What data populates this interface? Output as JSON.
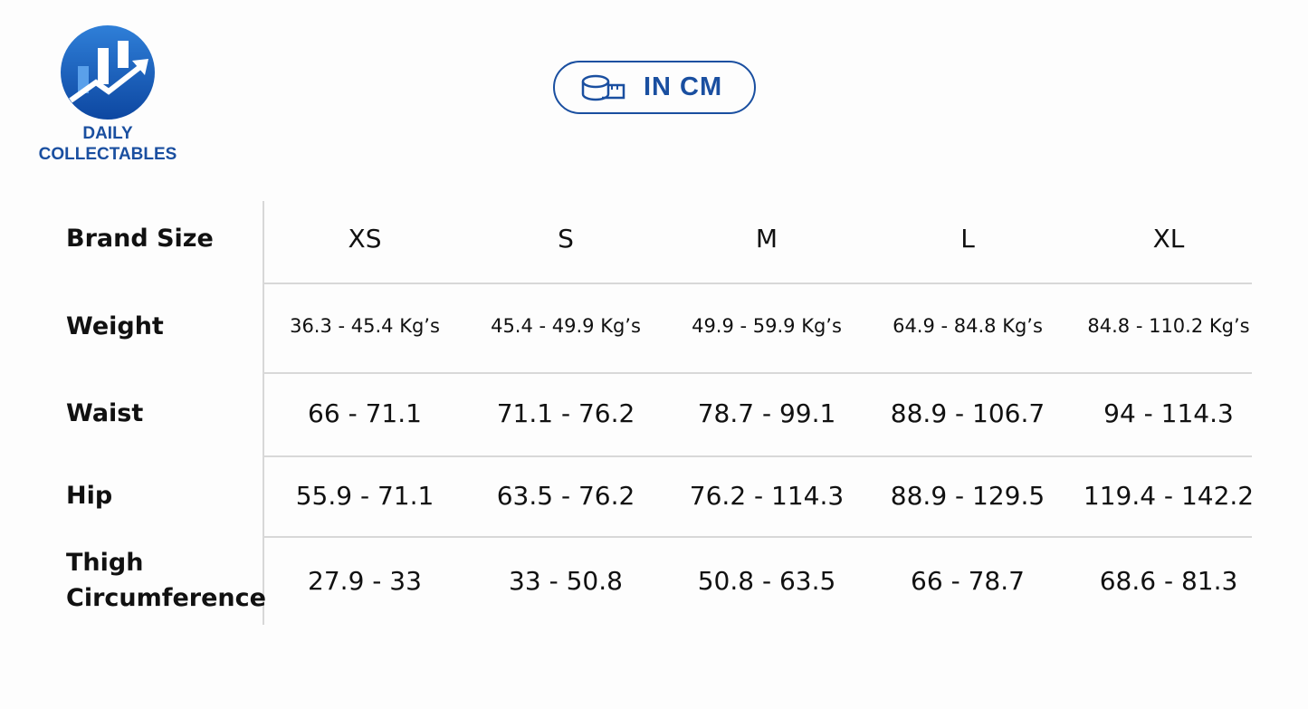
{
  "logo": {
    "line1": "DAILY",
    "line2": "COLLECTABLES"
  },
  "badge": "IN CM",
  "table": {
    "header": [
      "Brand Size",
      "XS",
      "S",
      "M",
      "L",
      "XL"
    ],
    "rows": [
      [
        "Weight",
        "36.3 - 45.4 Kg’s",
        "45.4 - 49.9 Kg’s",
        "49.9 - 59.9 Kg’s",
        "64.9 - 84.8 Kg’s",
        "84.8 - 110.2 Kg’s"
      ],
      [
        "Waist",
        "66 - 71.1",
        "71.1 - 76.2",
        "78.7 - 99.1",
        "88.9 - 106.7",
        "94 - 114.3"
      ],
      [
        "Hip",
        "55.9 - 71.1",
        "63.5 - 76.2",
        "76.2 - 114.3",
        "88.9 - 129.5",
        "119.4 - 142.2"
      ],
      [
        "Thigh Circumference",
        "27.9 - 33",
        "33 - 50.8",
        "50.8 - 63.5",
        "66 - 78.7",
        "68.6 - 81.3"
      ]
    ]
  }
}
